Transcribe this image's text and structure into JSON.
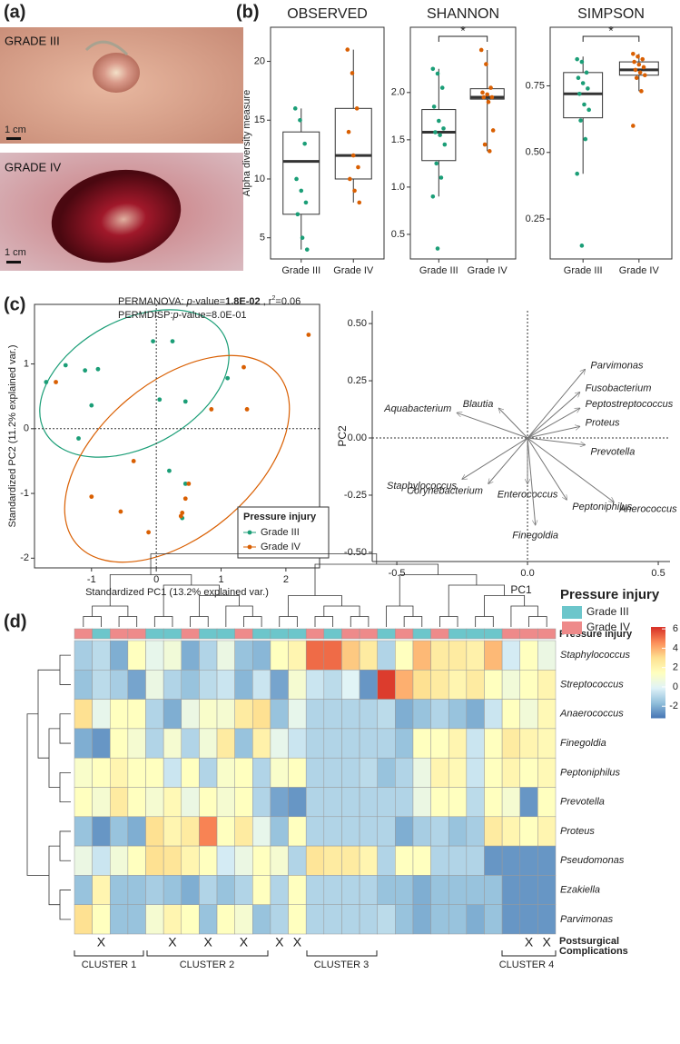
{
  "panel_labels": [
    "(a)",
    "(b)",
    "(c)",
    "(d)"
  ],
  "photos": [
    {
      "label": "GRADE III",
      "scale": "1 cm"
    },
    {
      "label": "GRADE IV",
      "scale": "1 cm"
    }
  ],
  "chart_data": [
    {
      "type": "boxplot",
      "title": "OBSERVED",
      "y_label": "Alpha diversity measure",
      "ylim": [
        3.2,
        22.9
      ],
      "yticks": [
        5,
        10,
        15,
        20
      ],
      "colors": [
        "#1b9e77",
        "#d95f02"
      ],
      "groups": [
        {
          "category": "Grade III",
          "q1": 7,
          "median": 11.5,
          "q3": 14,
          "whisker_low": 4,
          "whisker_high": 16,
          "points": [
            16,
            15,
            13,
            10,
            9,
            8,
            7,
            5,
            4
          ]
        },
        {
          "category": "Grade IV",
          "q1": 10,
          "median": 12,
          "q3": 16,
          "whisker_low": 8,
          "whisker_high": 21,
          "points": [
            21,
            19,
            16,
            14,
            12,
            11,
            10,
            9,
            8
          ]
        }
      ]
    },
    {
      "type": "boxplot",
      "title": "SHANNON",
      "significance": "*",
      "ylim": [
        0.24,
        2.69
      ],
      "yticks": [
        0.5,
        {
          "value": 1,
          "label": "1.0"
        },
        1.5,
        {
          "value": 2,
          "label": "2.0"
        }
      ],
      "colors": [
        "#1b9e77",
        "#d95f02"
      ],
      "groups": [
        {
          "category": "Grade III",
          "q1": 1.28,
          "median": 1.58,
          "q3": 1.82,
          "whisker_low": 0.9,
          "whisker_high": 2.25,
          "points": [
            2.25,
            2.2,
            2.05,
            1.85,
            1.7,
            1.62,
            1.58,
            1.55,
            1.45,
            1.25,
            1.1,
            0.9,
            0.35
          ]
        },
        {
          "category": "Grade IV",
          "q1": 1.93,
          "median": 1.95,
          "q3": 2.04,
          "whisker_low": 1.38,
          "whisker_high": 2.45,
          "points": [
            2.45,
            2.3,
            2.05,
            2.0,
            1.98,
            1.95,
            1.95,
            1.9,
            1.6,
            1.45,
            1.38
          ]
        }
      ]
    },
    {
      "type": "boxplot",
      "title": "SIMPSON",
      "significance": "*",
      "ylim": [
        0.1,
        0.97
      ],
      "yticks": [
        0.25,
        {
          "value": 0.5,
          "label": "0.50"
        },
        0.75
      ],
      "colors": [
        "#1b9e77",
        "#d95f02"
      ],
      "groups": [
        {
          "category": "Grade III",
          "q1": 0.63,
          "median": 0.72,
          "q3": 0.8,
          "whisker_low": 0.42,
          "whisker_high": 0.86,
          "points": [
            0.85,
            0.84,
            0.8,
            0.78,
            0.76,
            0.74,
            0.72,
            0.68,
            0.66,
            0.62,
            0.55,
            0.42,
            0.15
          ]
        },
        {
          "category": "Grade IV",
          "q1": 0.79,
          "median": 0.81,
          "q3": 0.84,
          "whisker_low": 0.73,
          "whisker_high": 0.87,
          "points": [
            0.87,
            0.86,
            0.85,
            0.84,
            0.83,
            0.82,
            0.81,
            0.8,
            0.79,
            0.78,
            0.73,
            0.6
          ]
        }
      ]
    },
    {
      "type": "scatter",
      "x_label": "Standardized PC1 (13.2% explained var.)",
      "y_label": "Standardized PC2 (11.2% explained var.)",
      "annotations": [
        [
          {
            "text": "PERMANOVA: "
          },
          {
            "text": "p",
            "style": "italic"
          },
          {
            "text": "-value="
          },
          {
            "text": "1.8E-02",
            "style": "bold"
          },
          {
            "text": " , r"
          },
          {
            "text": "2",
            "style": "sup"
          },
          {
            "text": "=0.06"
          }
        ],
        [
          {
            "text": "PERMDISP:"
          },
          {
            "text": "p",
            "style": "italic"
          },
          {
            "text": "-value=8.0E-01"
          }
        ]
      ],
      "xlim": [
        -1.88,
        2.52
      ],
      "ylim": [
        -2.15,
        1.92
      ],
      "xticks": [
        -1,
        0,
        1,
        2
      ],
      "yticks": [
        -2,
        -1,
        0,
        1
      ],
      "zero_lines": true,
      "legend_title": "Pressure injury",
      "series": [
        {
          "name": "Grade III",
          "color": "#1b9e77",
          "x": [
            -1.7,
            -1.4,
            -1.1,
            -0.9,
            -1.0,
            -1.2,
            -0.05,
            0.25,
            0.05,
            0.45,
            1.1,
            0.2,
            0.45,
            0.4
          ],
          "y": [
            0.72,
            0.98,
            0.9,
            0.92,
            0.36,
            -0.15,
            1.35,
            1.35,
            0.45,
            0.42,
            0.78,
            -0.65,
            -0.85,
            -1.38
          ]
        },
        {
          "name": "Grade IV",
          "color": "#d95f02",
          "x": [
            -1.55,
            1.35,
            1.4,
            0.85,
            -0.35,
            -1.0,
            -0.55,
            0.45,
            0.4,
            0.38,
            -0.12,
            2.35,
            0.5
          ],
          "y": [
            0.72,
            0.95,
            0.3,
            0.3,
            -0.5,
            -1.05,
            -1.28,
            -1.08,
            -1.3,
            -1.35,
            -1.6,
            1.45,
            -0.85
          ]
        }
      ]
    },
    {
      "type": "biplot",
      "x_label": "PC1",
      "y_label": "PC2",
      "color": "#777777",
      "xlim": [
        -0.594,
        0.545
      ],
      "ylim": [
        -0.54,
        0.556
      ],
      "xticks": [
        -0.5,
        {
          "value": 0,
          "label": "0.0"
        },
        0.5
      ],
      "yticks": [
        {
          "value": -0.5,
          "label": "-0.50"
        },
        -0.25,
        {
          "value": 0,
          "label": "0.00"
        },
        0.25,
        {
          "value": 0.5,
          "label": "0.50"
        }
      ],
      "arrows": [
        {
          "name": "Parvimonas",
          "x": 0.22,
          "y": 0.3
        },
        {
          "name": "Fusobacterium",
          "x": 0.2,
          "y": 0.2
        },
        {
          "name": "Peptostreptococcus",
          "x": 0.2,
          "y": 0.13
        },
        {
          "name": "Proteus",
          "x": 0.2,
          "y": 0.05
        },
        {
          "name": "Prevotella",
          "x": 0.22,
          "y": -0.03
        },
        {
          "name": "Aquabacterium",
          "x": -0.27,
          "y": 0.11
        },
        {
          "name": "Blautia",
          "x": -0.11,
          "y": 0.13
        },
        {
          "name": "Staphylococcus",
          "x": -0.25,
          "y": -0.18
        },
        {
          "name": "Corynebacterium",
          "x": -0.15,
          "y": -0.2
        },
        {
          "name": "Enterococcus",
          "x": 0.0,
          "y": -0.2
        },
        {
          "name": "Peptoniphilus",
          "x": 0.15,
          "y": -0.27
        },
        {
          "name": "Anerococcus",
          "x": 0.33,
          "y": -0.28
        },
        {
          "name": "Finegoldia",
          "x": 0.03,
          "y": -0.38
        }
      ]
    },
    {
      "type": "heatmap",
      "rows": [
        "Staphylococcus",
        "Streptococcus",
        "Anaerococcus",
        "Finegoldia",
        "Peptoniphilus",
        "Prevotella",
        "Proteus",
        "Pseudomonas",
        "Ezakiella",
        "Parvimonas"
      ],
      "annotation_label": "Pressure injury",
      "columns": [
        "Grade IV",
        "Grade III",
        "Grade IV",
        "Grade IV",
        "Grade III",
        "Grade III",
        "Grade IV",
        "Grade III",
        "Grade III",
        "Grade IV",
        "Grade III",
        "Grade III",
        "Grade III",
        "Grade IV",
        "Grade III",
        "Grade IV",
        "Grade IV",
        "Grade III",
        "Grade IV",
        "Grade III",
        "Grade IV",
        "Grade III",
        "Grade III",
        "Grade III",
        "Grade IV",
        "Grade IV",
        "Grade IV"
      ],
      "annotation_colors": {
        "Grade III": "#6cc6cb",
        "Grade IV": "#ee8a8a"
      },
      "legend_title": "Pressure injury",
      "legend_entries": [
        "Grade III",
        "Grade IV"
      ],
      "values": [
        [
          -1.2,
          -0.8,
          -2,
          1.5,
          0.3,
          0.8,
          -2,
          -1,
          0.5,
          -1.5,
          -1.8,
          1.5,
          2,
          5.2,
          5.2,
          3.5,
          2.5,
          -1,
          1.5,
          3.8,
          2.5,
          2.5,
          2.2,
          3.8,
          -0.3,
          1.5,
          0.5
        ],
        [
          -1.5,
          -0.8,
          -1.2,
          -2.2,
          0.5,
          -1,
          -1.5,
          -0.8,
          -0.5,
          -1.8,
          -0.5,
          -2.2,
          1,
          -0.5,
          -0.8,
          0,
          -2.5,
          6,
          4,
          3,
          2.5,
          2,
          2.5,
          1.5,
          0.8,
          1.5,
          2
        ],
        [
          3,
          0.3,
          1.5,
          1.5,
          -1,
          -2,
          0.5,
          1.2,
          1,
          2.5,
          3,
          -1.5,
          0.3,
          -1,
          -1,
          -1,
          -1,
          -0.8,
          -2,
          -1.5,
          -1,
          -1.5,
          -2,
          -0.5,
          1.5,
          0.8,
          1.8
        ],
        [
          -2,
          -2.5,
          1.5,
          1,
          -1,
          1,
          -1,
          0.8,
          2.5,
          -1.5,
          2.2,
          0.3,
          -0.5,
          -1,
          -1,
          -1,
          -1,
          -1,
          -1.5,
          1.5,
          1.5,
          2,
          -0.5,
          1.5,
          2.5,
          2,
          1.8
        ],
        [
          1.2,
          1.5,
          2,
          1.5,
          1.5,
          -0.5,
          1.5,
          -1,
          1.2,
          1.5,
          -1,
          1.2,
          1.5,
          -1,
          -1,
          -1,
          -0.8,
          -1.5,
          -1,
          0.5,
          2,
          1.8,
          -0.5,
          1.5,
          2,
          1.5,
          1.8
        ],
        [
          1.5,
          1,
          2.5,
          1.5,
          1,
          1.8,
          0.5,
          1.5,
          1,
          1.5,
          -1,
          -2.2,
          -2.5,
          -1,
          -1,
          -1,
          -1,
          -1,
          -1,
          0.5,
          1.5,
          1.5,
          -0.8,
          1.5,
          1,
          -2.5,
          1.5
        ],
        [
          -1.5,
          -2.5,
          -1.5,
          -2,
          3,
          2,
          2.5,
          4.8,
          1.5,
          2.5,
          0.3,
          -1.5,
          1.5,
          -1,
          -1,
          -1,
          -1,
          -1,
          -2,
          -1.2,
          -1,
          -1.5,
          -1.2,
          2.5,
          2,
          1.5,
          2
        ],
        [
          0.5,
          -0.5,
          0.8,
          1.5,
          3,
          2.8,
          2,
          1.5,
          -0.3,
          0.5,
          1.5,
          1,
          -1,
          2.8,
          2.5,
          2.5,
          2,
          -1,
          1.5,
          1.5,
          -1,
          -1,
          -1,
          -2.5,
          -2.5,
          -2.5,
          -2.5
        ],
        [
          -1.5,
          2,
          -1.5,
          -1.5,
          -1.2,
          -1.5,
          -2,
          -1,
          -1.5,
          -1,
          1.5,
          -1,
          1.5,
          -1,
          -1,
          -1,
          -1,
          -1.5,
          -1.5,
          -2,
          -1.5,
          -1.5,
          -1.5,
          -1.5,
          -2.5,
          -2.5,
          -2.5
        ],
        [
          3,
          1.5,
          -1.5,
          -1.5,
          1,
          2,
          1.5,
          -1.5,
          1.5,
          1,
          -1.5,
          -1,
          1.5,
          -1,
          -1,
          -1,
          -1,
          -0.8,
          -1.5,
          -2,
          -1.5,
          -1.5,
          -2,
          -1.5,
          -2.5,
          -2.5,
          -2.5
        ]
      ],
      "colormap": [
        "#4575b4",
        "#91bfdb",
        "#e0f3f8",
        "#ffffbf",
        "#fee090",
        "#fc8d59",
        "#d73027"
      ],
      "clim": [
        -3.2,
        6.2
      ],
      "cbar_ticks": [
        6,
        4,
        2,
        0,
        -2
      ],
      "complications_label": [
        "Postsurgical",
        "Complications"
      ],
      "complications": [
        null,
        "X",
        null,
        null,
        null,
        "X",
        null,
        "X",
        null,
        "X",
        null,
        "X",
        "X",
        null,
        null,
        null,
        null,
        null,
        null,
        null,
        null,
        null,
        null,
        null,
        null,
        "X",
        "X"
      ],
      "clusters": [
        "CLUSTER 1",
        "CLUSTER 2",
        "CLUSTER 3",
        "CLUSTER 4"
      ]
    }
  ]
}
